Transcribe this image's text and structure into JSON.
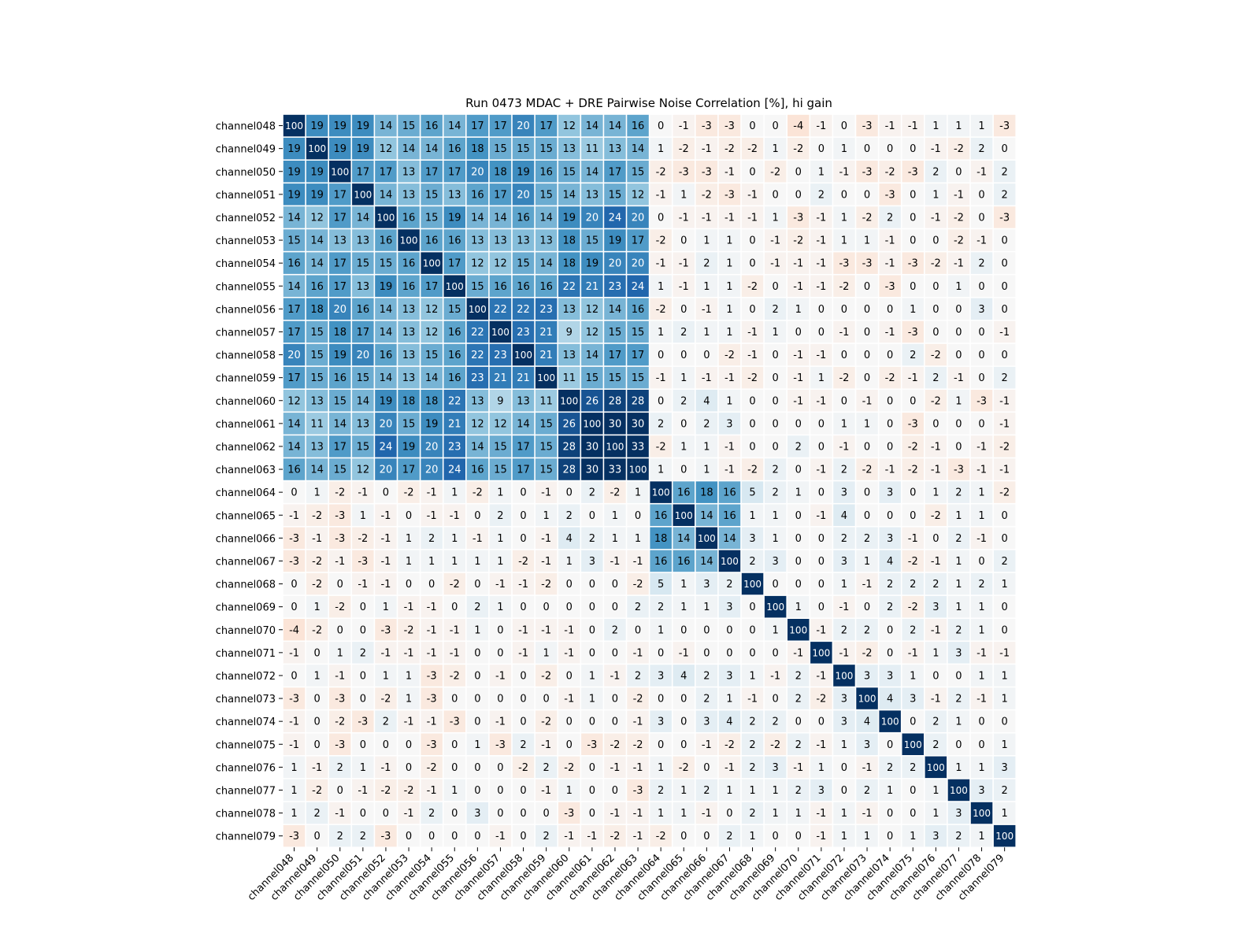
{
  "chart_data": {
    "type": "heatmap",
    "title": "Run 0473 MDAC + DRE Pairwise Noise Correlation [%], hi gain",
    "xlabel": "",
    "ylabel": "",
    "value_range": [
      -30,
      30
    ],
    "colormap": "RdBu (red = negative, blue = positive), clipped at ±30",
    "grid": false,
    "x_tick_labels": [
      "channel048",
      "channel049",
      "channel050",
      "channel051",
      "channel052",
      "channel053",
      "channel054",
      "channel055",
      "channel056",
      "channel057",
      "channel058",
      "channel059",
      "channel060",
      "channel061",
      "channel062",
      "channel063",
      "channel064",
      "channel065",
      "channel066",
      "channel067",
      "channel068",
      "channel069",
      "channel070",
      "channel071",
      "channel072",
      "channel073",
      "channel074",
      "channel075",
      "channel076",
      "channel077",
      "channel078",
      "channel079"
    ],
    "y_tick_labels": [
      "channel048",
      "channel049",
      "channel050",
      "channel051",
      "channel052",
      "channel053",
      "channel054",
      "channel055",
      "channel056",
      "channel057",
      "channel058",
      "channel059",
      "channel060",
      "channel061",
      "channel062",
      "channel063",
      "channel064",
      "channel065",
      "channel066",
      "channel067",
      "channel068",
      "channel069",
      "channel070",
      "channel071",
      "channel072",
      "channel073",
      "channel074",
      "channel075",
      "channel076",
      "channel077",
      "channel078",
      "channel079"
    ],
    "values": [
      [
        100,
        19,
        19,
        19,
        14,
        15,
        16,
        14,
        17,
        17,
        20,
        17,
        12,
        14,
        14,
        16,
        0,
        -1,
        -3,
        -3,
        0,
        0,
        -4,
        -1,
        0,
        -3,
        -1,
        -1,
        1,
        1,
        1,
        -3
      ],
      [
        19,
        100,
        19,
        19,
        12,
        14,
        14,
        16,
        18,
        15,
        15,
        15,
        13,
        11,
        13,
        14,
        1,
        -2,
        -1,
        -2,
        -2,
        1,
        -2,
        0,
        1,
        0,
        0,
        0,
        -1,
        -2,
        2,
        0
      ],
      [
        19,
        19,
        100,
        17,
        17,
        13,
        17,
        17,
        20,
        18,
        19,
        16,
        15,
        14,
        17,
        15,
        -2,
        -3,
        -3,
        -1,
        0,
        -2,
        0,
        1,
        -1,
        -3,
        -2,
        -3,
        2,
        0,
        -1,
        2
      ],
      [
        19,
        19,
        17,
        100,
        14,
        13,
        15,
        13,
        16,
        17,
        20,
        15,
        14,
        13,
        15,
        12,
        -1,
        1,
        -2,
        -3,
        -1,
        0,
        0,
        2,
        0,
        0,
        -3,
        0,
        1,
        -1,
        0,
        2
      ],
      [
        14,
        12,
        17,
        14,
        100,
        16,
        15,
        19,
        14,
        14,
        16,
        14,
        19,
        20,
        24,
        20,
        0,
        -1,
        -1,
        -1,
        -1,
        1,
        -3,
        -1,
        1,
        -2,
        2,
        0,
        -1,
        -2,
        0,
        -3
      ],
      [
        15,
        14,
        13,
        13,
        16,
        100,
        16,
        16,
        13,
        13,
        13,
        13,
        18,
        15,
        19,
        17,
        -2,
        0,
        1,
        1,
        0,
        -1,
        -2,
        -1,
        1,
        1,
        -1,
        0,
        0,
        -2,
        -1,
        0
      ],
      [
        16,
        14,
        17,
        15,
        15,
        16,
        100,
        17,
        12,
        12,
        15,
        14,
        18,
        19,
        20,
        20,
        -1,
        -1,
        2,
        1,
        0,
        -1,
        -1,
        -1,
        -3,
        -3,
        -1,
        -3,
        -2,
        -1,
        2,
        0
      ],
      [
        14,
        16,
        17,
        13,
        19,
        16,
        17,
        100,
        15,
        16,
        16,
        16,
        22,
        21,
        23,
        24,
        1,
        -1,
        1,
        1,
        -2,
        0,
        -1,
        -1,
        -2,
        0,
        -3,
        0,
        0,
        1,
        0,
        0
      ],
      [
        17,
        18,
        20,
        16,
        14,
        13,
        12,
        15,
        100,
        22,
        22,
        23,
        13,
        12,
        14,
        16,
        -2,
        0,
        -1,
        1,
        0,
        2,
        1,
        0,
        0,
        0,
        0,
        1,
        0,
        0,
        3,
        0
      ],
      [
        17,
        15,
        18,
        17,
        14,
        13,
        12,
        16,
        22,
        100,
        23,
        21,
        9,
        12,
        15,
        15,
        1,
        2,
        1,
        1,
        -1,
        1,
        0,
        0,
        -1,
        0,
        -1,
        -3,
        0,
        0,
        0,
        -1
      ],
      [
        20,
        15,
        19,
        20,
        16,
        13,
        15,
        16,
        22,
        23,
        100,
        21,
        13,
        14,
        17,
        17,
        0,
        0,
        0,
        -2,
        -1,
        0,
        -1,
        -1,
        0,
        0,
        0,
        2,
        -2,
        0,
        0,
        0
      ],
      [
        17,
        15,
        16,
        15,
        14,
        13,
        14,
        16,
        23,
        21,
        21,
        100,
        11,
        15,
        15,
        15,
        -1,
        1,
        -1,
        -1,
        -2,
        0,
        -1,
        1,
        -2,
        0,
        -2,
        -1,
        2,
        -1,
        0,
        2
      ],
      [
        12,
        13,
        15,
        14,
        19,
        18,
        18,
        22,
        13,
        9,
        13,
        11,
        100,
        26,
        28,
        28,
        0,
        2,
        4,
        1,
        0,
        0,
        -1,
        -1,
        0,
        -1,
        0,
        0,
        -2,
        1,
        -3,
        -1
      ],
      [
        14,
        11,
        14,
        13,
        20,
        15,
        19,
        21,
        12,
        12,
        14,
        15,
        26,
        100,
        30,
        30,
        2,
        0,
        2,
        3,
        0,
        0,
        0,
        0,
        1,
        1,
        0,
        -3,
        0,
        0,
        0,
        -1
      ],
      [
        14,
        13,
        17,
        15,
        24,
        19,
        20,
        23,
        14,
        15,
        17,
        15,
        28,
        30,
        100,
        33,
        -2,
        1,
        1,
        -1,
        0,
        0,
        2,
        0,
        -1,
        0,
        0,
        -2,
        -1,
        0,
        -1,
        -2
      ],
      [
        16,
        14,
        15,
        12,
        20,
        17,
        20,
        24,
        16,
        15,
        17,
        15,
        28,
        30,
        33,
        100,
        1,
        0,
        1,
        -1,
        -2,
        2,
        0,
        -1,
        2,
        -2,
        -1,
        -2,
        -1,
        -3,
        -1,
        -1
      ],
      [
        0,
        1,
        -2,
        -1,
        0,
        -2,
        -1,
        1,
        -2,
        1,
        0,
        -1,
        0,
        2,
        -2,
        1,
        100,
        16,
        18,
        16,
        5,
        2,
        1,
        0,
        3,
        0,
        3,
        0,
        1,
        2,
        1,
        -2
      ],
      [
        -1,
        -2,
        -3,
        1,
        -1,
        0,
        -1,
        -1,
        0,
        2,
        0,
        1,
        2,
        0,
        1,
        0,
        16,
        100,
        14,
        16,
        1,
        1,
        0,
        -1,
        4,
        0,
        0,
        0,
        -2,
        1,
        1,
        0
      ],
      [
        -3,
        -1,
        -3,
        -2,
        -1,
        1,
        2,
        1,
        -1,
        1,
        0,
        -1,
        4,
        2,
        1,
        1,
        18,
        14,
        100,
        14,
        3,
        1,
        0,
        0,
        2,
        2,
        3,
        -1,
        0,
        2,
        -1,
        0
      ],
      [
        -3,
        -2,
        -1,
        -3,
        -1,
        1,
        1,
        1,
        1,
        1,
        -2,
        -1,
        1,
        3,
        -1,
        -1,
        16,
        16,
        14,
        100,
        2,
        3,
        0,
        0,
        3,
        1,
        4,
        -2,
        -1,
        1,
        0,
        2
      ],
      [
        0,
        -2,
        0,
        -1,
        -1,
        0,
        0,
        -2,
        0,
        -1,
        -1,
        -2,
        0,
        0,
        0,
        -2,
        5,
        1,
        3,
        2,
        100,
        0,
        0,
        0,
        1,
        -1,
        2,
        2,
        2,
        1,
        2,
        1
      ],
      [
        0,
        1,
        -2,
        0,
        1,
        -1,
        -1,
        0,
        2,
        1,
        0,
        0,
        0,
        0,
        0,
        2,
        2,
        1,
        1,
        3,
        0,
        100,
        1,
        0,
        -1,
        0,
        2,
        -2,
        3,
        1,
        1,
        0
      ],
      [
        -4,
        -2,
        0,
        0,
        -3,
        -2,
        -1,
        -1,
        1,
        0,
        -1,
        -1,
        -1,
        0,
        2,
        0,
        1,
        0,
        0,
        0,
        0,
        1,
        100,
        -1,
        2,
        2,
        0,
        2,
        -1,
        2,
        1,
        0
      ],
      [
        -1,
        0,
        1,
        2,
        -1,
        -1,
        -1,
        -1,
        0,
        0,
        -1,
        1,
        -1,
        0,
        0,
        -1,
        0,
        -1,
        0,
        0,
        0,
        0,
        -1,
        100,
        -1,
        -2,
        0,
        -1,
        1,
        3,
        -1,
        -1
      ],
      [
        0,
        1,
        -1,
        0,
        1,
        1,
        -3,
        -2,
        0,
        -1,
        0,
        -2,
        0,
        1,
        -1,
        2,
        3,
        4,
        2,
        3,
        1,
        -1,
        2,
        -1,
        100,
        3,
        3,
        1,
        0,
        0,
        1,
        1
      ],
      [
        -3,
        0,
        -3,
        0,
        -2,
        1,
        -3,
        0,
        0,
        0,
        0,
        0,
        -1,
        1,
        0,
        -2,
        0,
        0,
        2,
        1,
        -1,
        0,
        2,
        -2,
        3,
        100,
        4,
        3,
        -1,
        2,
        -1,
        1
      ],
      [
        -1,
        0,
        -2,
        -3,
        2,
        -1,
        -1,
        -3,
        0,
        -1,
        0,
        -2,
        0,
        0,
        0,
        -1,
        3,
        0,
        3,
        4,
        2,
        2,
        0,
        0,
        3,
        4,
        100,
        0,
        2,
        1,
        0,
        0
      ],
      [
        -1,
        0,
        -3,
        0,
        0,
        0,
        -3,
        0,
        1,
        -3,
        2,
        -1,
        0,
        -3,
        -2,
        -2,
        0,
        0,
        -1,
        -2,
        2,
        -2,
        2,
        -1,
        1,
        3,
        0,
        100,
        2,
        0,
        0,
        1
      ],
      [
        1,
        -1,
        2,
        1,
        -1,
        0,
        -2,
        0,
        0,
        0,
        -2,
        2,
        -2,
        0,
        -1,
        -1,
        1,
        -2,
        0,
        -1,
        2,
        3,
        -1,
        1,
        0,
        -1,
        2,
        2,
        100,
        1,
        1,
        3
      ],
      [
        1,
        -2,
        0,
        -1,
        -2,
        -2,
        -1,
        1,
        0,
        0,
        0,
        -1,
        1,
        0,
        0,
        -3,
        2,
        1,
        2,
        1,
        1,
        1,
        2,
        3,
        0,
        2,
        1,
        0,
        1,
        100,
        3,
        2
      ],
      [
        1,
        2,
        -1,
        0,
        0,
        -1,
        2,
        0,
        3,
        0,
        0,
        0,
        -3,
        0,
        -1,
        -1,
        1,
        1,
        -1,
        0,
        2,
        1,
        1,
        -1,
        1,
        -1,
        0,
        0,
        1,
        3,
        100,
        1
      ],
      [
        -3,
        0,
        2,
        2,
        -3,
        0,
        0,
        0,
        0,
        -1,
        0,
        2,
        -1,
        -1,
        -2,
        -1,
        -2,
        0,
        0,
        2,
        1,
        0,
        0,
        -1,
        1,
        1,
        0,
        1,
        3,
        2,
        1,
        100
      ]
    ]
  }
}
